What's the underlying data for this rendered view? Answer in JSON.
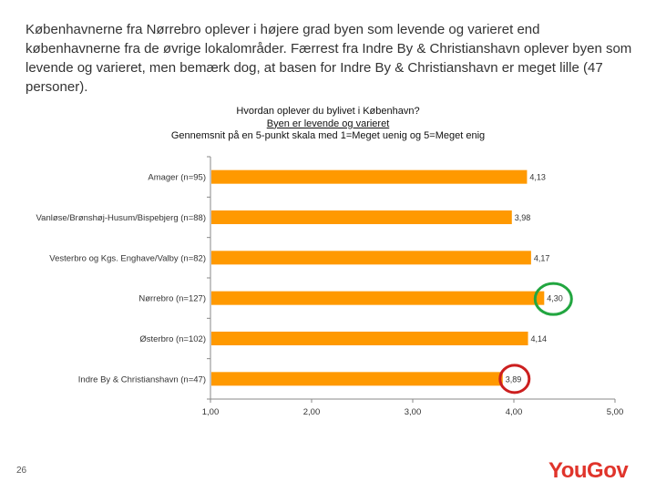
{
  "intro_text": "Københavnerne fra Nørrebro oplever i højere grad byen som levende og varieret end københavnerne fra de øvrige lokalområder. Færrest fra Indre By & Christianshavn oplever byen som levende og varieret, men bemærk dog, at basen for Indre By & Christianshavn er meget lille (47 personer).",
  "page_number": "26",
  "logo_text": "YouGov",
  "colors": {
    "bar": "#ff9900",
    "highlight_high": "#22a640",
    "highlight_low": "#cc1f1f",
    "logo": "#e0342b"
  },
  "chart_data": {
    "type": "bar",
    "orientation": "horizontal",
    "title": "Hvordan oplever du bylivet i København?",
    "subtitle": "Byen er levende og varieret",
    "note": "Gennemsnit på en 5-punkt skala med 1=Meget uenig og 5=Meget enig",
    "categories": [
      "Amager (n=95)",
      "Vanløse/Brønshøj-Husum/Bispebjerg (n=88)",
      "Vesterbro og Kgs. Enghave/Valby (n=82)",
      "Nørrebro (n=127)",
      "Østerbro (n=102)",
      "Indre By & Christianshavn (n=47)"
    ],
    "values": [
      4.13,
      3.98,
      4.17,
      4.3,
      4.14,
      3.89
    ],
    "value_labels": [
      "4,13",
      "3,98",
      "4,17",
      "4,30",
      "4,14",
      "3,89"
    ],
    "xlim": [
      1,
      5
    ],
    "x_ticks": [
      1,
      2,
      3,
      4,
      5
    ],
    "x_tick_labels": [
      "1,00",
      "2,00",
      "3,00",
      "4,00",
      "5,00"
    ],
    "highlighted": {
      "highest": "Nørrebro (n=127)",
      "lowest": "Indre By & Christianshavn (n=47)"
    },
    "grid": false,
    "legend": "none"
  }
}
